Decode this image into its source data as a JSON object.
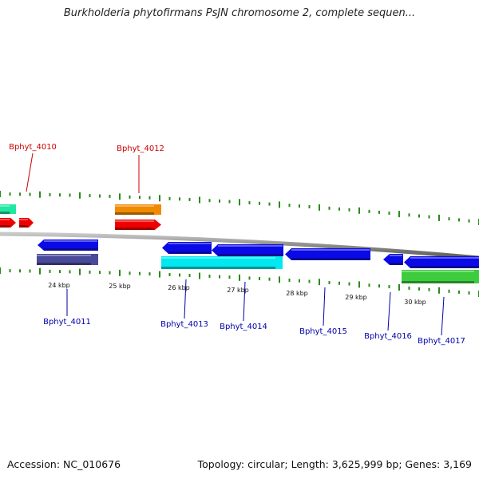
{
  "title": "Burkholderia phytofirmans PsJN chromosome 2, complete sequen...",
  "footer": {
    "accession": "Accession: NC_010676",
    "summary": "Topology: circular; Length: 3,625,999 bp; Genes: 3,169"
  },
  "colors": {
    "backbone": "#8a8a8a",
    "ticks": "#2a8a1a",
    "top_label": "#cc0000",
    "bottom_label": "#0000aa",
    "blue_gene": "#0a0ae6",
    "red_gene": "#ee0000",
    "orange_gene": "#f08a00",
    "cyan_gene": "#00e8f0",
    "purple_gene": "#4a4a9a",
    "green_gene": "#3dcc3d",
    "teal_gene": "#20e8a0"
  },
  "scale": {
    "labels": [
      "24 kbp",
      "25 kbp",
      "26 kbp",
      "27 kbp",
      "28 kbp",
      "29 kbp",
      "30 kbp"
    ]
  },
  "gene_labels": {
    "top": [
      "Bphyt_4010",
      "Bphyt_4012"
    ],
    "bottom": [
      "Bphyt_4011",
      "Bphyt_4013",
      "Bphyt_4014",
      "Bphyt_4015",
      "Bphyt_4016",
      "Bphyt_4017"
    ]
  }
}
